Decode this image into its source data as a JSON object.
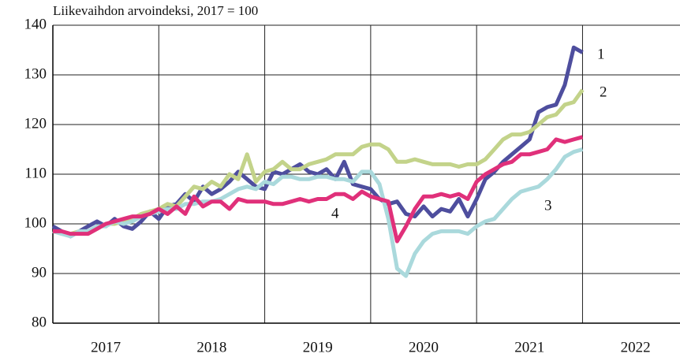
{
  "chart_data": {
    "type": "line",
    "title": "Liikevaihdon arvoindeksi, 2017 = 100",
    "x": [
      2017,
      2017.083,
      2017.167,
      2017.25,
      2017.333,
      2017.417,
      2017.5,
      2017.583,
      2017.667,
      2017.75,
      2017.833,
      2017.917,
      2018,
      2018.083,
      2018.167,
      2018.25,
      2018.333,
      2018.417,
      2018.5,
      2018.583,
      2018.667,
      2018.75,
      2018.833,
      2018.917,
      2019,
      2019.083,
      2019.167,
      2019.25,
      2019.333,
      2019.417,
      2019.5,
      2019.583,
      2019.667,
      2019.75,
      2019.833,
      2019.917,
      2020,
      2020.083,
      2020.167,
      2020.25,
      2020.333,
      2020.417,
      2020.5,
      2020.583,
      2020.667,
      2020.75,
      2020.833,
      2020.917,
      2021,
      2021.083,
      2021.167,
      2021.25,
      2021.333,
      2021.417,
      2021.5,
      2021.583,
      2021.667,
      2021.75,
      2021.833,
      2021.917,
      2022
    ],
    "categories": [
      "2017",
      "2018",
      "2019",
      "2020",
      "2021",
      "2022"
    ],
    "series": [
      {
        "name": "1",
        "color": "#4e4e9e",
        "values": [
          99.5,
          98.5,
          97.5,
          98.5,
          99.5,
          100.5,
          99.5,
          101,
          99.5,
          99,
          100.5,
          102.5,
          101,
          103.5,
          104,
          106,
          104.5,
          107.5,
          106,
          107,
          108.5,
          110.5,
          109,
          107.5,
          107,
          110.5,
          110,
          111,
          112,
          110.5,
          110,
          111,
          109,
          112.5,
          108,
          107.5,
          107,
          105,
          104,
          104.5,
          102,
          101.5,
          103.5,
          101.5,
          103,
          102.5,
          105,
          101.5,
          105,
          109,
          110.5,
          112.5,
          114,
          115.5,
          117,
          122.5,
          123.5,
          124,
          128,
          135.5,
          134.5
        ]
      },
      {
        "name": "2",
        "color": "#c3d38a",
        "values": [
          98.5,
          98,
          98,
          98.5,
          98,
          99,
          100,
          100,
          100.5,
          101,
          102,
          102.5,
          103,
          104,
          103.5,
          105.5,
          107.5,
          107,
          108.5,
          107.5,
          110,
          109,
          114,
          108.5,
          110.5,
          111,
          112.5,
          111,
          111,
          112,
          112.5,
          113,
          114,
          114,
          114,
          115.5,
          116,
          116,
          115,
          112.5,
          112.5,
          113,
          112.5,
          112,
          112,
          112,
          111.5,
          112,
          112,
          113,
          115,
          117,
          118,
          118,
          118.5,
          120,
          121.5,
          122,
          124,
          124.5,
          127
        ]
      },
      {
        "name": "3",
        "color": "#aad9dc",
        "values": [
          98.5,
          98,
          97.5,
          98.5,
          98.5,
          99.5,
          99.5,
          100.5,
          100,
          100.5,
          101.5,
          102,
          102.5,
          103,
          103,
          104,
          104,
          104.5,
          104.5,
          105,
          106,
          107,
          107.5,
          107,
          108.5,
          108,
          109.5,
          109.5,
          109,
          109,
          109.5,
          109.5,
          109,
          109,
          108.5,
          110.5,
          110.5,
          108,
          101,
          91,
          89.5,
          94,
          96.5,
          98,
          98.5,
          98.5,
          98.5,
          98,
          99.5,
          100.5,
          101,
          103,
          105,
          106.5,
          107,
          107.5,
          109,
          111,
          113.5,
          114.5,
          115
        ]
      },
      {
        "name": "4",
        "color": "#e0307a",
        "values": [
          98.5,
          98.5,
          98,
          98,
          98,
          99,
          100,
          100.5,
          101,
          101.5,
          101.5,
          102,
          103,
          102,
          103.5,
          102,
          105.5,
          103.5,
          104.5,
          104.5,
          103,
          105,
          104.5,
          104.5,
          104.5,
          104,
          104,
          104.5,
          105,
          104.5,
          105,
          105,
          106,
          106,
          105,
          106.5,
          105.5,
          105,
          104.5,
          96.5,
          99.5,
          103,
          105.5,
          105.5,
          106,
          105.5,
          106,
          105,
          108.5,
          110,
          111,
          112,
          112.5,
          114,
          114,
          114.5,
          115,
          117,
          116.5,
          117,
          117.5
        ]
      }
    ],
    "xlim": [
      2017,
      2022.92
    ],
    "xticks": [
      2017,
      2018,
      2019,
      2020,
      2021,
      2022
    ],
    "ylim": [
      80,
      140
    ],
    "yticks": [
      80,
      90,
      100,
      110,
      120,
      130,
      140
    ],
    "grid": true
  }
}
